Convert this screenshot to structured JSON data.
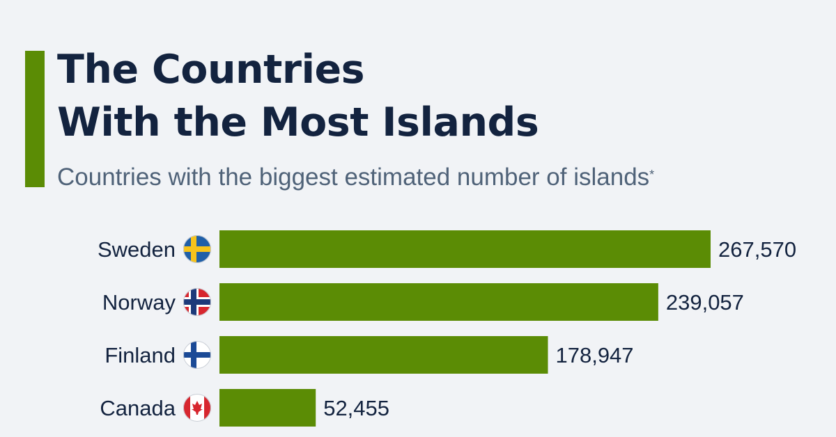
{
  "header": {
    "title_line1": "The Countries",
    "title_line2": "With the Most Islands",
    "subtitle": "Countries with the biggest estimated number of islands",
    "subtitle_mark": "*"
  },
  "colors": {
    "accent": "#5b8c05",
    "bar": "#5b8c05",
    "title": "#13233f",
    "subtitle": "#4f6278",
    "background": "#f1f3f6"
  },
  "chart_data": {
    "type": "bar",
    "orientation": "horizontal",
    "categories": [
      "Sweden",
      "Norway",
      "Finland",
      "Canada"
    ],
    "values": [
      267570,
      239057,
      178947,
      52455
    ],
    "value_labels": [
      "267,570",
      "239,057",
      "178,947",
      "52,455"
    ],
    "flags": [
      "sweden-flag-icon",
      "norway-flag-icon",
      "finland-flag-icon",
      "canada-flag-icon"
    ],
    "grid": false,
    "legend": "none"
  }
}
